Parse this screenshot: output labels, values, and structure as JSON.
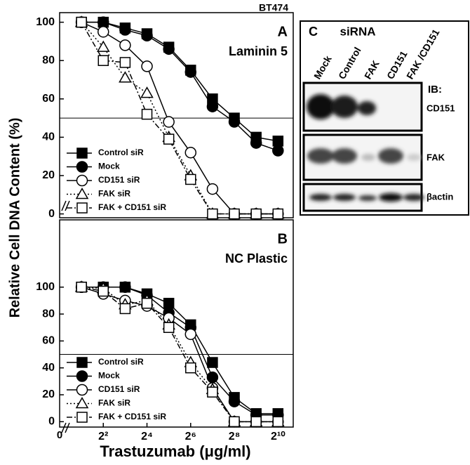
{
  "figure": {
    "label": "BT474",
    "ylabel": "Relative Cell DNA Content (%)",
    "xlabel": "Trastuzumab (μg/ml)"
  },
  "chart_data": [
    {
      "type": "line",
      "panel": "A",
      "title": "Laminin 5",
      "xscale": "log2",
      "xlim": [
        1,
        1660
      ],
      "ylim": [
        -2,
        105
      ],
      "yticks": [
        0,
        20,
        40,
        60,
        80,
        100
      ],
      "hline": 50,
      "legend": "lower left",
      "x": [
        2,
        4,
        8,
        16,
        32,
        64,
        128,
        256,
        512,
        1024
      ],
      "series": [
        {
          "name": "Control siR",
          "color": "#000000",
          "marker": "square-filled",
          "dash": "solid",
          "values": [
            100,
            100,
            97,
            94,
            87,
            75,
            60,
            50,
            40,
            38
          ]
        },
        {
          "name": "Mock",
          "color": "#000000",
          "marker": "circle-filled",
          "dash": "solid",
          "values": [
            100,
            100,
            96,
            93,
            86,
            74,
            56,
            48,
            37,
            33
          ]
        },
        {
          "name": "CD151 siR",
          "color": "#000000",
          "marker": "circle-open",
          "dash": "solid",
          "values": [
            100,
            95,
            88,
            77,
            48,
            32,
            13,
            0,
            0,
            0
          ]
        },
        {
          "name": "FAK siR",
          "color": "#000000",
          "marker": "triangle-open",
          "dash": "dotted",
          "values": [
            100,
            87,
            71,
            63,
            40,
            20,
            0,
            0,
            0,
            0
          ]
        },
        {
          "name": "FAK + CD151 siR",
          "color": "#000000",
          "marker": "square-open",
          "dash": "dashdot",
          "values": [
            100,
            80,
            79,
            52,
            39,
            18,
            0,
            0,
            0,
            0
          ]
        }
      ]
    },
    {
      "type": "line",
      "panel": "B",
      "title": "NC Plastic",
      "xscale": "log2",
      "xlim": [
        1,
        1660
      ],
      "ylim": [
        -4,
        150
      ],
      "yticks": [
        0,
        20,
        40,
        60,
        80,
        100
      ],
      "hline": 50,
      "legend": "lower left",
      "xorigin_label": "0",
      "xticks": [
        {
          "value": 4,
          "label": "2²"
        },
        {
          "value": 16,
          "label": "2⁴"
        },
        {
          "value": 64,
          "label": "2⁶"
        },
        {
          "value": 256,
          "label": "2⁸"
        },
        {
          "value": 1024,
          "label": "2¹⁰"
        }
      ],
      "x": [
        2,
        4,
        8,
        16,
        32,
        64,
        128,
        256,
        512,
        1024
      ],
      "series": [
        {
          "name": "Control siR",
          "color": "#000000",
          "marker": "square-filled",
          "dash": "solid",
          "values": [
            100,
            100,
            100,
            95,
            88,
            72,
            44,
            18,
            6,
            6
          ]
        },
        {
          "name": "Mock",
          "color": "#000000",
          "marker": "circle-filled",
          "dash": "solid",
          "values": [
            100,
            100,
            100,
            94,
            81,
            70,
            33,
            15,
            5,
            5
          ]
        },
        {
          "name": "CD151 siR",
          "color": "#000000",
          "marker": "circle-open",
          "dash": "solid",
          "values": [
            100,
            95,
            90,
            86,
            77,
            65,
            25,
            0,
            0,
            0
          ]
        },
        {
          "name": "FAK siR",
          "color": "#000000",
          "marker": "triangle-open",
          "dash": "dotted",
          "values": [
            100,
            99,
            87,
            90,
            72,
            44,
            24,
            0,
            0,
            0
          ]
        },
        {
          "name": "FAK + CD151 siR",
          "color": "#000000",
          "marker": "square-open",
          "dash": "dashdot",
          "values": [
            100,
            97,
            84,
            88,
            70,
            40,
            22,
            0,
            0,
            0
          ]
        }
      ]
    }
  ],
  "blot": {
    "panel": "C",
    "title": "siRNA",
    "lanes": [
      "Mock",
      "Control",
      "FAK",
      "CD151",
      "FAK /CD151"
    ],
    "ib_label": "IB:",
    "rows": [
      "CD151",
      "FAK",
      "βactin"
    ]
  }
}
